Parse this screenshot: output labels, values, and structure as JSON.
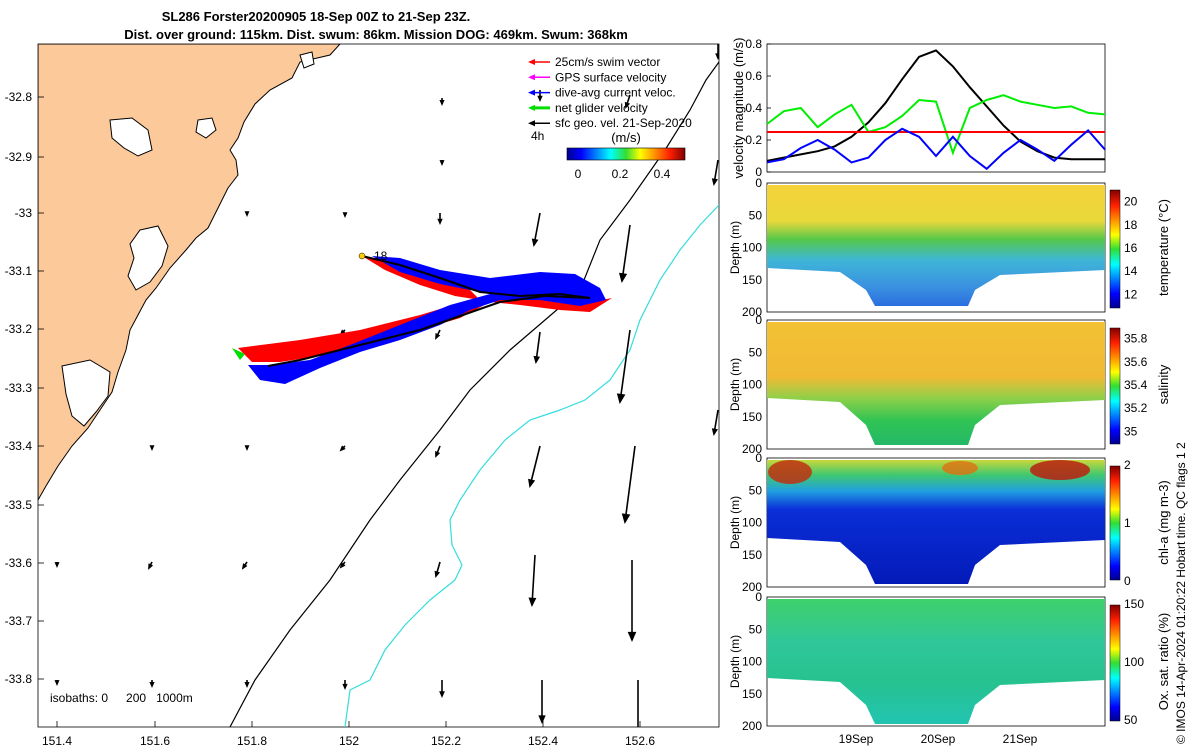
{
  "title": {
    "line1": "SL286 Forster20200905 18-Sep 00Z to 21-Sep 23Z.",
    "line2": "Dist. over ground: 115km. Dist. swum: 86km. Mission DOG: 469km. Swum: 368km"
  },
  "map": {
    "legend": [
      {
        "label": "25cm/s swim vector",
        "color": "#ff0000"
      },
      {
        "label": "GPS surface velocity",
        "color": "#ff00ff"
      },
      {
        "label": "dive-avg current veloc.",
        "color": "#0000ff"
      },
      {
        "label": "net glider velocity",
        "color": "#00dd00"
      },
      {
        "label": "sfc geo. vel. 21-Sep-2020",
        "color": "#000000"
      }
    ],
    "time_label": "4h",
    "colorbar": {
      "title": "(m/s)",
      "ticks": [
        "0",
        "0.2",
        "0.4"
      ]
    },
    "start_marker": "18",
    "isobaths_label": "isobaths: 0",
    "isobath_values": [
      "200",
      "1000m"
    ],
    "lon_ticks": [
      "151.4",
      "151.6",
      "151.8",
      "152",
      "152.2",
      "152.4",
      "152.6"
    ],
    "lat_ticks": [
      "-32.8",
      "-32.9",
      "-33",
      "-33.1",
      "-33.2",
      "-33.3",
      "-33.4",
      "-33.5",
      "-33.6",
      "-33.7",
      "-33.8"
    ],
    "land_color": "#fbc99a",
    "isobath_colors": {
      "200m": "#000000",
      "1000m": "#33dddd"
    }
  },
  "chart_data": [
    {
      "type": "line",
      "ylabel": "velocity magnitude (m/s)",
      "ylim": [
        0,
        0.8
      ],
      "yticks": [
        "0",
        "0.2",
        "0.4",
        "0.6",
        "0.8"
      ],
      "x": [
        0,
        0.05,
        0.1,
        0.15,
        0.2,
        0.25,
        0.3,
        0.35,
        0.4,
        0.45,
        0.5,
        0.55,
        0.6,
        0.65,
        0.7,
        0.75,
        0.8,
        0.85,
        0.9,
        0.95,
        1.0
      ],
      "series": [
        {
          "color": "#000000",
          "values": [
            0.07,
            0.09,
            0.11,
            0.13,
            0.16,
            0.22,
            0.31,
            0.43,
            0.58,
            0.72,
            0.76,
            0.66,
            0.53,
            0.41,
            0.29,
            0.19,
            0.13,
            0.09,
            0.08,
            0.08,
            0.08
          ]
        },
        {
          "color": "#00ee00",
          "values": [
            0.3,
            0.38,
            0.4,
            0.28,
            0.36,
            0.42,
            0.25,
            0.28,
            0.35,
            0.45,
            0.44,
            0.12,
            0.4,
            0.45,
            0.48,
            0.44,
            0.42,
            0.4,
            0.41,
            0.37,
            0.36
          ]
        },
        {
          "color": "#ff0000",
          "values": [
            0.25,
            0.25,
            0.25,
            0.25,
            0.25,
            0.25,
            0.25,
            0.25,
            0.25,
            0.25,
            0.25,
            0.25,
            0.25,
            0.25,
            0.25,
            0.25,
            0.25,
            0.25,
            0.25,
            0.25,
            0.25
          ]
        },
        {
          "color": "#0000ff",
          "values": [
            0.06,
            0.08,
            0.15,
            0.2,
            0.14,
            0.06,
            0.09,
            0.2,
            0.27,
            0.22,
            0.1,
            0.22,
            0.1,
            0.02,
            0.12,
            0.2,
            0.14,
            0.07,
            0.17,
            0.26,
            0.14
          ]
        }
      ]
    },
    {
      "type": "heatmap",
      "colorbar_label": "temperature (°C)",
      "cbar_ticks": [
        "12",
        "14",
        "16",
        "18",
        "20"
      ],
      "ylabel": "Depth (m)",
      "yticks": [
        "0",
        "50",
        "100",
        "150",
        "200"
      ]
    },
    {
      "type": "heatmap",
      "colorbar_label": "salinity",
      "cbar_ticks": [
        "35",
        "35.2",
        "35.4",
        "35.6",
        "35.8"
      ],
      "ylabel": "Depth (m)",
      "yticks": [
        "0",
        "50",
        "100",
        "150",
        "200"
      ]
    },
    {
      "type": "heatmap",
      "colorbar_label": "chl-a (mg m-3)",
      "cbar_ticks": [
        "0",
        "1",
        "2"
      ],
      "ylabel": "Depth (m)",
      "yticks": [
        "0",
        "50",
        "100",
        "150",
        "200"
      ]
    },
    {
      "type": "heatmap",
      "colorbar_label": "Ox. sat. ratio (%)",
      "cbar_ticks": [
        "50",
        "100",
        "150"
      ],
      "ylabel": "Depth (m)",
      "yticks": [
        "0",
        "50",
        "100",
        "150",
        "200"
      ]
    }
  ],
  "time_axis": {
    "ticks": [
      "19Sep",
      "20Sep",
      "21Sep"
    ]
  },
  "footer": "© IMOS 14-Apr-2024 01:20:22 Hobart time. QC flags 1  2"
}
